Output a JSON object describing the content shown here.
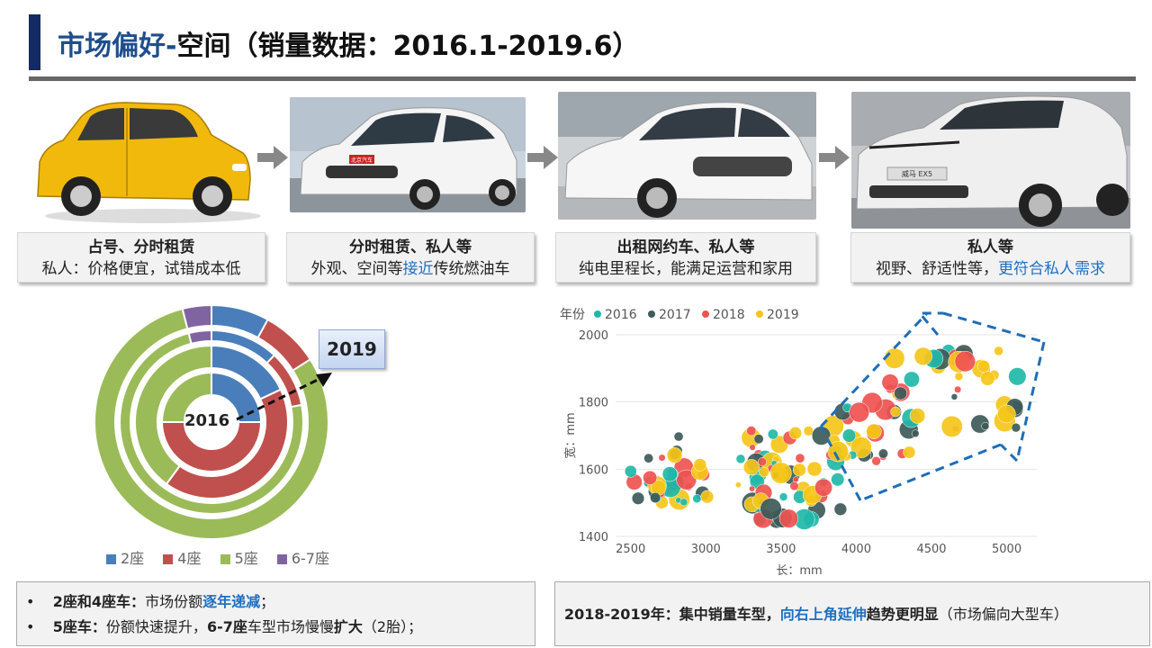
{
  "header": {
    "title_part1": "市场偏好-",
    "title_part2": "空间（销量数据：2016.1-2019.6）"
  },
  "cars": [
    {
      "head": "占号、分时租赁",
      "pre": "私人：价格便宜，试错成本低",
      "highlight": "",
      "post": ""
    },
    {
      "head": "分时租赁、私人等",
      "pre": "外观、空间等",
      "highlight": "接近",
      "post": "传统燃油车"
    },
    {
      "head": "出租网约车、私人等",
      "pre": "纯电里程长，能满足运营和家用",
      "highlight": "",
      "post": ""
    },
    {
      "head": "私人等",
      "pre": "视野、舒适性等，",
      "highlight": "更符合私人需求",
      "post": ""
    }
  ],
  "car_plates": {
    "car2": "北京汽车",
    "car4": "威马 EX5"
  },
  "donut": {
    "label_inner": "2016",
    "label_outer": "2019",
    "legend": [
      {
        "name": "2座",
        "color": "#4a7ebb"
      },
      {
        "name": "4座",
        "color": "#c0504d"
      },
      {
        "name": "5座",
        "color": "#9bbb59"
      },
      {
        "name": "6-7座",
        "color": "#8064a2"
      }
    ],
    "rings": [
      {
        "year": "2016",
        "shares": [
          0.25,
          0.5,
          0.25,
          0.0
        ]
      },
      {
        "year": "2017",
        "shares": [
          0.18,
          0.42,
          0.4,
          0.0
        ]
      },
      {
        "year": "2018",
        "shares": [
          0.12,
          0.1,
          0.74,
          0.04
        ]
      },
      {
        "year": "2019",
        "shares": [
          0.08,
          0.08,
          0.8,
          0.04
        ]
      }
    ]
  },
  "scatter": {
    "legend_title": "年份",
    "series_colors": {
      "2016": "#1fb8a8",
      "2017": "#3d5a58",
      "2018": "#ef5350",
      "2019": "#f5c518"
    },
    "xlabel": "长：mm",
    "ylabel": "宽：mm",
    "xlim": [
      2400,
      5200
    ],
    "ylim": [
      1400,
      2000
    ],
    "xticks": [
      "2500",
      "3000",
      "3500",
      "4000",
      "4500",
      "5000"
    ],
    "yticks": [
      "1400",
      "1600",
      "1800",
      "2000"
    ]
  },
  "notes_left": {
    "l1_bold": "2座和4座车：",
    "l1_text": "市场份额",
    "l1_blue": "逐年递减",
    "l1_end": "；",
    "l2_bold": "5座车：",
    "l2_text": "份额快速提升，",
    "l2_bold2": "6-7座",
    "l2_text2": "车型市场慢慢",
    "l2_bold3": "扩大",
    "l2_end": "（2胎）；"
  },
  "notes_right": {
    "bold": "2018-2019年：集中销量车型，",
    "blue": "向右上角延伸",
    "bold2": "趋势更明显",
    "text": "（市场偏向大型车）"
  }
}
